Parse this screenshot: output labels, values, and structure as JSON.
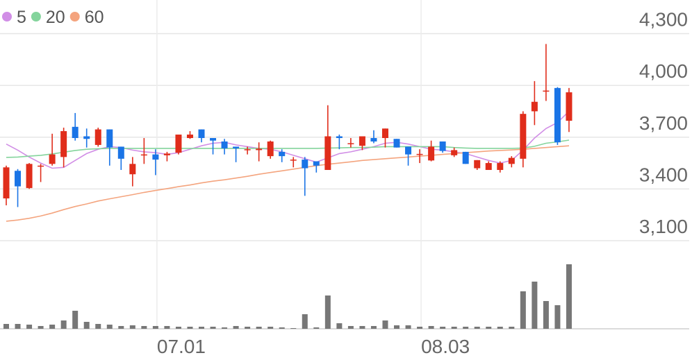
{
  "chart_data": {
    "type": "candlestick",
    "categories": [
      null,
      null,
      null,
      null,
      null,
      null,
      null,
      null,
      null,
      null,
      null,
      null,
      null,
      "07.01",
      null,
      null,
      null,
      null,
      null,
      null,
      null,
      null,
      null,
      null,
      null,
      null,
      null,
      null,
      null,
      null,
      null,
      null,
      null,
      null,
      null,
      null,
      "08.03",
      null,
      null,
      null,
      null,
      null,
      null,
      null,
      null,
      null,
      null,
      null,
      null,
      null
    ],
    "open": [
      3345,
      3505,
      3405,
      3530,
      3545,
      3585,
      3760,
      3705,
      3655,
      3745,
      3645,
      3485,
      3595,
      3600,
      3595,
      3610,
      3695,
      3745,
      3695,
      3675,
      3645,
      3625,
      3625,
      3590,
      3615,
      3565,
      3570,
      3560,
      3510,
      3705,
      3660,
      3650,
      3695,
      3695,
      3690,
      3645,
      3597,
      3565,
      3675,
      3595,
      3615,
      3520,
      3510,
      3510,
      3545,
      3575,
      3850,
      3965,
      3985,
      3795
    ],
    "high": [
      3535,
      3515,
      3550,
      3545,
      3720,
      3755,
      3840,
      3750,
      3755,
      3745,
      3645,
      3585,
      3695,
      3630,
      3615,
      3715,
      3735,
      3745,
      3695,
      3690,
      3645,
      3645,
      3670,
      3680,
      3630,
      3585,
      3585,
      3560,
      3885,
      3715,
      3695,
      3705,
      3740,
      3750,
      3690,
      3645,
      3630,
      3680,
      3675,
      3640,
      3615,
      3567,
      3560,
      3560,
      3590,
      3850,
      4025,
      4240,
      3990,
      3985
    ],
    "low": [
      3305,
      3295,
      3400,
      3440,
      3535,
      3525,
      3680,
      3640,
      3645,
      3535,
      3510,
      3415,
      3545,
      3480,
      3560,
      3600,
      3690,
      3670,
      3600,
      3600,
      3555,
      3600,
      3560,
      3575,
      3555,
      3525,
      3360,
      3495,
      3510,
      3630,
      3640,
      3625,
      3665,
      3640,
      3640,
      3535,
      3550,
      3560,
      3610,
      3585,
      3545,
      3510,
      3510,
      3495,
      3525,
      3525,
      3770,
      3910,
      3655,
      3730
    ],
    "close": [
      3525,
      3415,
      3545,
      3535,
      3600,
      3735,
      3695,
      3690,
      3745,
      3640,
      3575,
      3545,
      3600,
      3570,
      3605,
      3715,
      3715,
      3695,
      3680,
      3635,
      3635,
      3630,
      3633,
      3675,
      3590,
      3570,
      3520,
      3535,
      3705,
      3695,
      3665,
      3705,
      3675,
      3750,
      3640,
      3600,
      3603,
      3645,
      3620,
      3625,
      3545,
      3567,
      3550,
      3550,
      3580,
      3835,
      3905,
      3970,
      3670,
      3960
    ],
    "up_color": "#e02d1b",
    "down_color": "#1a74e6",
    "volume": [
      7,
      7,
      6,
      4,
      6,
      12,
      26,
      10,
      7,
      6,
      4,
      5,
      4,
      4,
      4,
      3,
      3,
      3,
      3,
      2,
      4,
      3,
      3,
      3,
      2,
      1,
      21,
      2,
      48,
      8,
      4,
      4,
      4,
      12,
      5,
      5,
      3,
      4,
      3,
      3,
      3,
      3,
      3,
      3,
      3,
      54,
      68,
      40,
      34,
      93
    ],
    "volume_color": "#777777",
    "volume_ylim": [
      0,
      100
    ],
    "series": [
      {
        "name": "5",
        "color": "#d18ee6",
        "values": [
          3660,
          3625,
          3585,
          3550,
          3520,
          3525,
          3565,
          3605,
          3630,
          3645,
          3640,
          3625,
          3615,
          3610,
          3600,
          3610,
          3630,
          3650,
          3665,
          3670,
          3655,
          3645,
          3635,
          3630,
          3615,
          3595,
          3575,
          3555,
          3580,
          3605,
          3615,
          3630,
          3645,
          3665,
          3670,
          3660,
          3645,
          3630,
          3625,
          3615,
          3605,
          3585,
          3565,
          3550,
          3565,
          3625,
          3695,
          3750,
          3785,
          3850
        ]
      },
      {
        "name": "20",
        "color": "#84d49c",
        "values": [
          3583,
          3585,
          3590,
          3595,
          3603,
          3613,
          3623,
          3630,
          3633,
          3635,
          3635,
          3635,
          3635,
          3635,
          3635,
          3635,
          3635,
          3635,
          3635,
          3635,
          3635,
          3635,
          3635,
          3635,
          3635,
          3635,
          3635,
          3635,
          3637,
          3638,
          3640,
          3640,
          3642,
          3645,
          3645,
          3645,
          3645,
          3645,
          3645,
          3640,
          3637,
          3635,
          3635,
          3635,
          3635,
          3637,
          3647,
          3665,
          3673,
          3683
        ]
      },
      {
        "name": "60",
        "color": "#f4a47e",
        "values": [
          3213,
          3220,
          3230,
          3243,
          3260,
          3280,
          3298,
          3313,
          3330,
          3343,
          3355,
          3367,
          3380,
          3391,
          3402,
          3413,
          3423,
          3435,
          3445,
          3453,
          3463,
          3473,
          3485,
          3495,
          3505,
          3515,
          3525,
          3535,
          3543,
          3550,
          3557,
          3565,
          3570,
          3575,
          3580,
          3585,
          3590,
          3595,
          3600,
          3605,
          3610,
          3615,
          3620,
          3623,
          3626,
          3630,
          3635,
          3640,
          3645,
          3650
        ]
      }
    ],
    "ylim": [
      3100,
      4495
    ],
    "yticks": [
      {
        "value": 3100,
        "label": "3,100"
      },
      {
        "value": 3400,
        "label": "3,400"
      },
      {
        "value": 3700,
        "label": "3,700"
      },
      {
        "value": 4000,
        "label": "4,000"
      },
      {
        "value": 4300,
        "label": "4,300"
      }
    ],
    "grid": true
  }
}
